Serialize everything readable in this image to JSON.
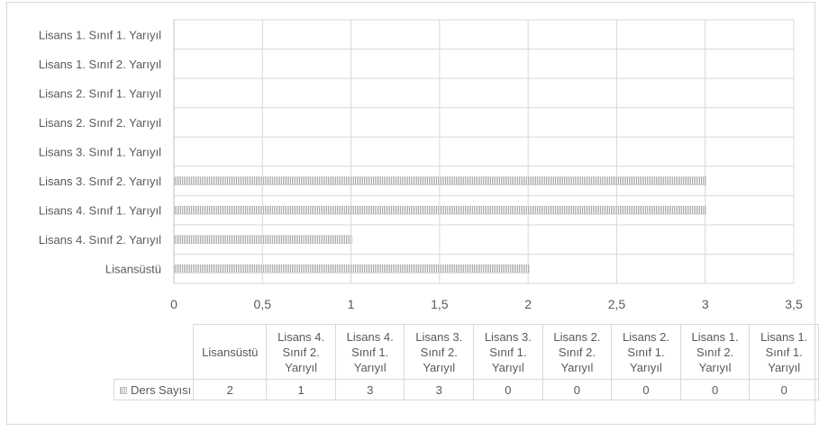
{
  "chart_data": {
    "type": "bar",
    "orientation": "horizontal",
    "categories": [
      "Lisans 1. Sınıf 1. Yarıyıl",
      "Lisans 1. Sınıf 2. Yarıyıl",
      "Lisans 2. Sınıf 1. Yarıyıl",
      "Lisans 2. Sınıf 2. Yarıyıl",
      "Lisans 3. Sınıf 1. Yarıyıl",
      "Lisans 3. Sınıf 2. Yarıyıl",
      "Lisans 4. Sınıf 1. Yarıyıl",
      "Lisans 4. Sınıf 2. Yarıyıl",
      "Lisansüstü"
    ],
    "series": [
      {
        "name": "Ders Sayısı",
        "values": [
          0,
          0,
          0,
          0,
          0,
          3,
          3,
          1,
          2
        ]
      }
    ],
    "xlim": [
      0,
      3.5
    ],
    "xticks": [
      "0",
      "0,5",
      "1",
      "1,5",
      "2",
      "2,5",
      "3",
      "3,5"
    ],
    "grid": true,
    "bar_color": "#a6a6a6",
    "data_table": {
      "headers": [
        [
          "Lisansüstü"
        ],
        [
          "Lisans 4.",
          "Sınıf 2.",
          "Yarıyıl"
        ],
        [
          "Lisans 4.",
          "Sınıf 1.",
          "Yarıyıl"
        ],
        [
          "Lisans 3.",
          "Sınıf 2.",
          "Yarıyıl"
        ],
        [
          "Lisans 3.",
          "Sınıf 1.",
          "Yarıyıl"
        ],
        [
          "Lisans 2.",
          "Sınıf 2.",
          "Yarıyıl"
        ],
        [
          "Lisans 2.",
          "Sınıf 1.",
          "Yarıyıl"
        ],
        [
          "Lisans 1.",
          "Sınıf 2.",
          "Yarıyıl"
        ],
        [
          "Lisans 1.",
          "Sınıf 1.",
          "Yarıyıl"
        ]
      ],
      "series_label": "Ders Sayısı",
      "values": [
        "2",
        "1",
        "3",
        "3",
        "0",
        "0",
        "0",
        "0",
        "0"
      ]
    }
  }
}
